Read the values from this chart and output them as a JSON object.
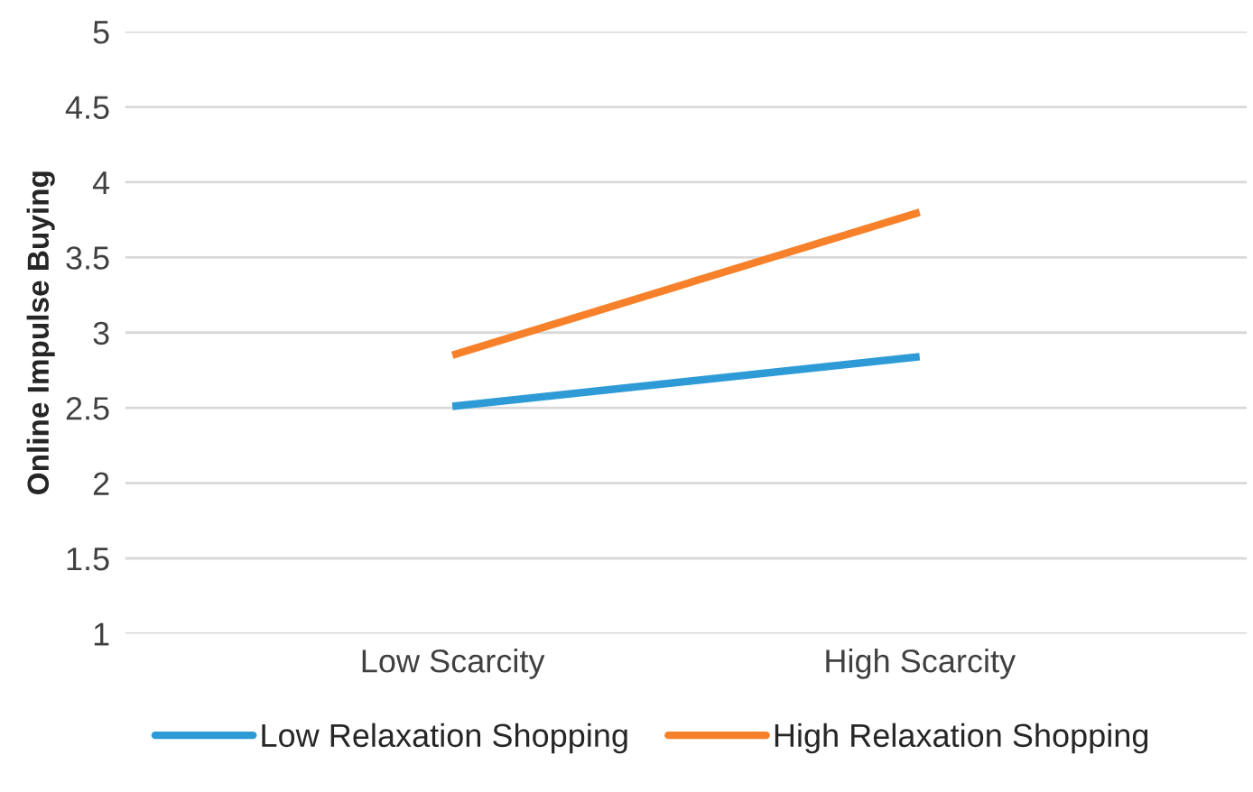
{
  "chart_data": {
    "type": "line",
    "ylabel": "Online Impulse Buying",
    "categories": [
      "Low Scarcity",
      "High Scarcity"
    ],
    "series": [
      {
        "name": "Low Relaxation Shopping",
        "color": "#2e9bd6",
        "values": [
          2.51,
          2.84
        ]
      },
      {
        "name": "High Relaxation Shopping",
        "color": "#f7812a",
        "values": [
          2.85,
          3.8
        ]
      }
    ],
    "ylim": [
      1,
      5
    ],
    "yticks": [
      1,
      1.5,
      2,
      2.5,
      3,
      3.5,
      4,
      4.5,
      5
    ],
    "grid": "y",
    "legend": "bottom",
    "marker": "none",
    "line_style": "solid"
  }
}
